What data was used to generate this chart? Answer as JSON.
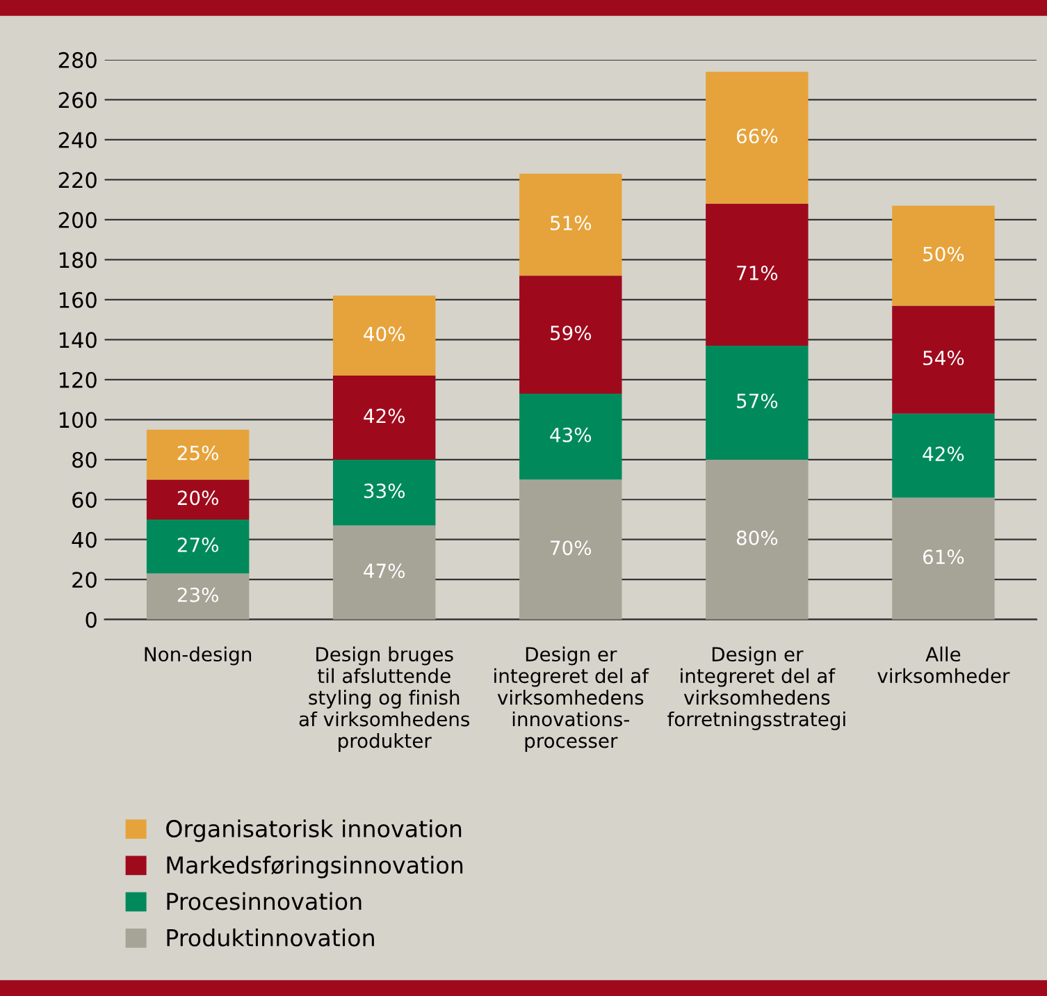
{
  "chart_data": {
    "type": "bar",
    "stacked": true,
    "categories": [
      "Non-design",
      "Design bruges\ntil afsluttende\nstyling og finish\naf virksomhedens\nprodukter",
      "Design er\nintegreret del af\nvirksomhedens\ninnovations-\nprocesser",
      "Design er\nintegreret del af\nvirksomhedens\nforretningsstrategi",
      "Alle\nvirksomheder"
    ],
    "series": [
      {
        "name": "Produktinnovation",
        "color": "#a6a497",
        "values": [
          23,
          47,
          70,
          80,
          61
        ]
      },
      {
        "name": "Procesinnovation",
        "color": "#008a5c",
        "values": [
          27,
          33,
          43,
          57,
          42
        ]
      },
      {
        "name": "Markedsføringsinnovation",
        "color": "#9e0a1c",
        "values": [
          20,
          42,
          59,
          71,
          54
        ]
      },
      {
        "name": "Organisatorisk innovation",
        "color": "#e6a33b",
        "values": [
          25,
          40,
          51,
          66,
          50
        ]
      }
    ],
    "value_labels": [
      [
        "23%",
        "47%",
        "70%",
        "80%",
        "61%"
      ],
      [
        "27%",
        "33%",
        "43%",
        "57%",
        "42%"
      ],
      [
        "20%",
        "42%",
        "59%",
        "71%",
        "54%"
      ],
      [
        "25%",
        "40%",
        "51%",
        "66%",
        "50%"
      ]
    ],
    "ylim": [
      0,
      280
    ],
    "yticks": [
      0,
      20,
      40,
      60,
      80,
      100,
      120,
      140,
      160,
      180,
      200,
      220,
      240,
      260,
      280
    ],
    "grid": "y",
    "legend": "bottom"
  }
}
